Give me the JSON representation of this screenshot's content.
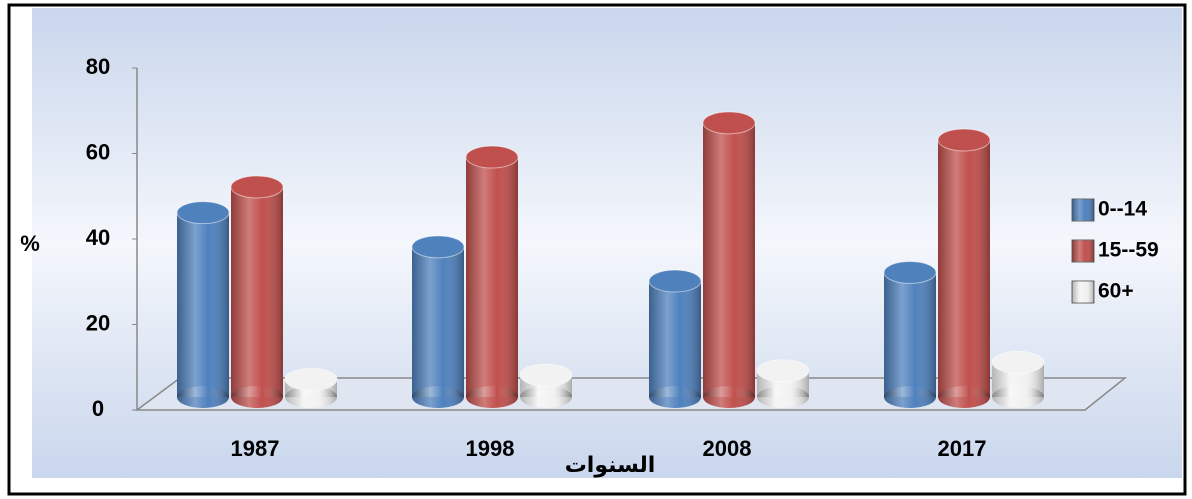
{
  "chart_data": {
    "type": "bar3d",
    "categories": [
      "1987",
      "1998",
      "2008",
      "2017"
    ],
    "series": [
      {
        "name": "0--14",
        "color": "#4f81bd",
        "values": [
          45,
          37,
          29,
          31
        ]
      },
      {
        "name": "15--59",
        "color": "#c0504d",
        "values": [
          51,
          58,
          66,
          62
        ]
      },
      {
        "name": "60+",
        "color": "#f2f2f2",
        "values": [
          6,
          7,
          8,
          10
        ]
      }
    ],
    "ylim": [
      0,
      80
    ],
    "yticks": [
      0,
      20,
      40,
      60,
      80
    ],
    "ylabel": "%",
    "xlabel": "السنوات",
    "legend": "right"
  }
}
